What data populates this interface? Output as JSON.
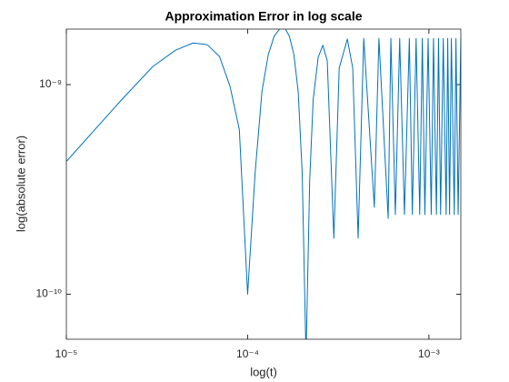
{
  "chart_data": {
    "type": "line",
    "title": "Approximation Error in log scale",
    "x_label": "log(t)",
    "y_label": "log(absolute error)",
    "xscale": "log",
    "yscale": "log",
    "color": "#0072bd",
    "xlim": [
      1e-05,
      0.0015
    ],
    "ylim": [
      6.1e-11,
      1.84e-09
    ],
    "xticks": [
      {
        "value": 1e-05,
        "label": "10⁻⁵"
      },
      {
        "value": 0.0001,
        "label": "10⁻⁴"
      },
      {
        "value": 0.001,
        "label": "10⁻³"
      }
    ],
    "yticks": [
      {
        "value": 1e-10,
        "label": "10⁻¹⁰"
      },
      {
        "value": 1e-09,
        "label": "10⁻⁹"
      }
    ],
    "x": [
      1e-05,
      2e-05,
      3e-05,
      4e-05,
      5e-05,
      6e-05,
      7e-05,
      8e-05,
      9e-05,
      0.0001,
      0.00011,
      0.00012,
      0.00013,
      0.00014,
      0.00015,
      0.00016,
      0.00017,
      0.00018,
      0.00019,
      0.0002,
      0.00021,
      0.00022,
      0.00023,
      0.000245,
      0.00026,
      0.000275,
      0.000299,
      0.00032,
      0.000355,
      0.00038,
      0.000407,
      0.000437,
      0.0005,
      0.00053,
      0.000596,
      0.000617,
      0.000653,
      0.00069,
      0.000733,
      0.00078,
      0.00081,
      0.00085,
      0.00089,
      0.00092,
      0.00095,
      0.00099,
      0.00103,
      0.00106,
      0.0011,
      0.00113,
      0.00116,
      0.0012,
      0.001245,
      0.00127,
      0.0013,
      0.00133,
      0.00138,
      0.00141,
      0.00145,
      0.0015
    ],
    "values": [
      4.3e-10,
      8.4e-10,
      1.22e-09,
      1.46e-09,
      1.58e-09,
      1.55e-09,
      1.36e-09,
      9.8e-10,
      6.1e-10,
      1e-10,
      3.8e-10,
      9.3e-10,
      1.39e-09,
      1.7e-09,
      1.84e-09,
      1.87e-09,
      1.7e-09,
      1.39e-09,
      9.3e-10,
      3.8e-10,
      5e-11,
      3.5e-10,
      8.5e-10,
      1.35e-09,
      1.54e-09,
      1.3e-09,
      1.85e-10,
      1.2e-09,
      1.65e-09,
      1.2e-09,
      1.85e-10,
      1.66e-09,
      2.6e-10,
      1.66e-09,
      2.3e-10,
      1.66e-09,
      2.4e-10,
      1.66e-09,
      2.4e-10,
      1.66e-09,
      2.4e-10,
      1.66e-09,
      2.4e-10,
      1.66e-09,
      2.4e-10,
      1.66e-09,
      2.4e-10,
      1.66e-09,
      2.4e-10,
      1.66e-09,
      2.4e-10,
      1.66e-09,
      2.4e-10,
      1.66e-09,
      2.4e-10,
      1.66e-09,
      2.4e-10,
      1.66e-09,
      2.4e-10,
      1.66e-09
    ]
  }
}
